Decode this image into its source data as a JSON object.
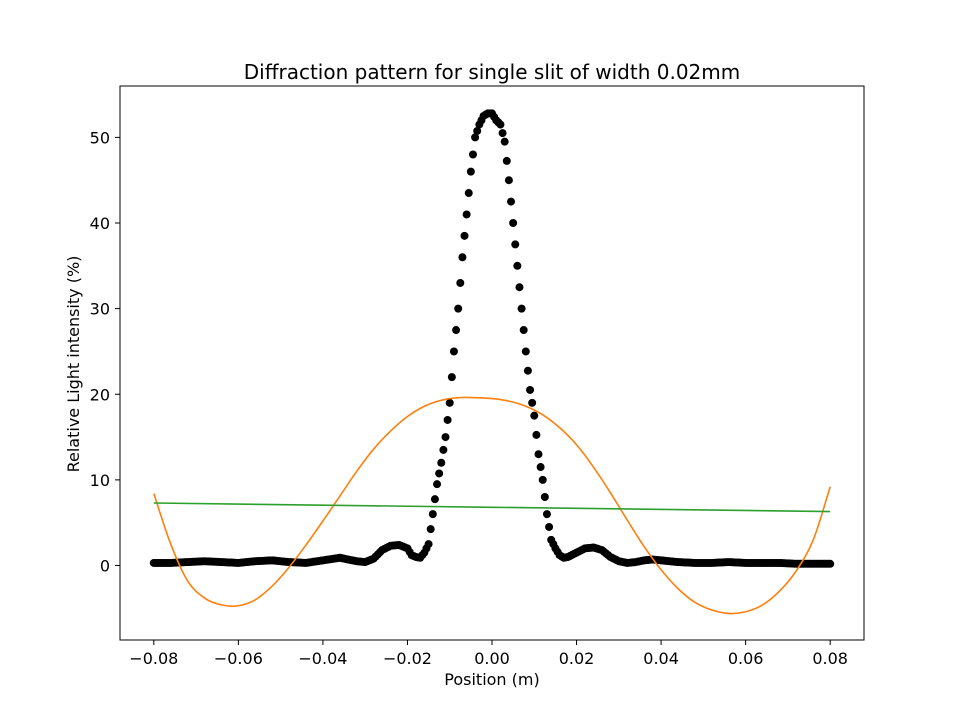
{
  "chart_data": {
    "type": "scatter",
    "title": "Diffraction pattern for single slit of width 0.02mm",
    "xlabel": "Position (m)",
    "ylabel": "Relative Light intensity (%)",
    "xlim": [
      -0.088,
      0.088
    ],
    "ylim": [
      -8.7,
      56
    ],
    "xticks": [
      -0.08,
      -0.06,
      -0.04,
      -0.02,
      0.0,
      0.02,
      0.04,
      0.06,
      0.08
    ],
    "xtick_labels": [
      "−0.08",
      "−0.06",
      "−0.04",
      "−0.02",
      "0.00",
      "0.02",
      "0.04",
      "0.06",
      "0.08"
    ],
    "yticks": [
      0,
      10,
      20,
      30,
      40,
      50
    ],
    "ytick_labels": [
      "0",
      "10",
      "20",
      "30",
      "40",
      "50"
    ],
    "grid": false,
    "legend": false,
    "series": [
      {
        "kind": "scatter",
        "color": "#000000",
        "x": [
          -0.08,
          -0.076,
          -0.072,
          -0.068,
          -0.064,
          -0.06,
          -0.056,
          -0.052,
          -0.048,
          -0.044,
          -0.04,
          -0.036,
          -0.032,
          -0.03,
          -0.028,
          -0.026,
          -0.024,
          -0.022,
          -0.02,
          -0.019,
          -0.018,
          -0.017,
          -0.016,
          -0.015,
          -0.014,
          -0.013,
          -0.012,
          -0.011,
          -0.01,
          -0.009,
          -0.008,
          -0.007,
          -0.006,
          -0.005,
          -0.004,
          -0.003,
          -0.002,
          -0.001,
          0.0,
          0.001,
          0.002,
          0.003,
          0.004,
          0.005,
          0.006,
          0.007,
          0.008,
          0.009,
          0.01,
          0.011,
          0.012,
          0.013,
          0.014,
          0.015,
          0.016,
          0.017,
          0.018,
          0.02,
          0.022,
          0.024,
          0.026,
          0.028,
          0.03,
          0.032,
          0.034,
          0.036,
          0.038,
          0.04,
          0.044,
          0.048,
          0.052,
          0.056,
          0.06,
          0.064,
          0.068,
          0.072,
          0.076,
          0.08
        ],
        "y": [
          0.3,
          0.3,
          0.4,
          0.5,
          0.4,
          0.3,
          0.5,
          0.6,
          0.4,
          0.3,
          0.6,
          0.9,
          0.5,
          0.4,
          0.8,
          1.8,
          2.3,
          2.4,
          2.0,
          1.2,
          1.0,
          0.9,
          1.5,
          2.5,
          6.0,
          9.5,
          12.0,
          15.0,
          19.0,
          25.0,
          30.0,
          36.0,
          41.0,
          46.0,
          50.0,
          51.5,
          52.5,
          52.8,
          52.8,
          52.0,
          51.5,
          49.5,
          45.0,
          40.0,
          35.0,
          30.0,
          25.0,
          20.5,
          17.5,
          13.0,
          10.0,
          6.0,
          3.0,
          2.0,
          1.2,
          0.9,
          1.0,
          1.5,
          2.0,
          2.1,
          1.8,
          1.0,
          0.5,
          0.3,
          0.4,
          0.6,
          0.7,
          0.6,
          0.4,
          0.3,
          0.3,
          0.4,
          0.3,
          0.3,
          0.3,
          0.2,
          0.2,
          0.2
        ]
      },
      {
        "kind": "line",
        "color": "#ff7f0e",
        "x": [
          -0.08,
          -0.076,
          -0.072,
          -0.068,
          -0.064,
          -0.06,
          -0.056,
          -0.052,
          -0.048,
          -0.044,
          -0.04,
          -0.036,
          -0.032,
          -0.028,
          -0.024,
          -0.02,
          -0.016,
          -0.012,
          -0.008,
          -0.004,
          0.0,
          0.004,
          0.008,
          0.012,
          0.016,
          0.02,
          0.024,
          0.028,
          0.032,
          0.036,
          0.04,
          0.044,
          0.048,
          0.052,
          0.056,
          0.06,
          0.064,
          0.068,
          0.072,
          0.076,
          0.08
        ],
        "y": [
          8.4,
          2.5,
          -1.8,
          -3.8,
          -4.6,
          -4.7,
          -4.0,
          -2.4,
          -0.2,
          2.4,
          5.2,
          8.1,
          11.0,
          13.6,
          15.7,
          17.4,
          18.6,
          19.3,
          19.6,
          19.6,
          19.5,
          19.2,
          18.6,
          17.6,
          16.1,
          14.1,
          11.5,
          8.5,
          5.3,
          2.2,
          -0.5,
          -2.7,
          -4.3,
          -5.2,
          -5.6,
          -5.4,
          -4.6,
          -3.0,
          -0.6,
          3.0,
          9.2
        ]
      },
      {
        "kind": "line",
        "color": "#2ca02c",
        "x": [
          -0.08,
          0.08
        ],
        "y": [
          7.3,
          6.3
        ]
      }
    ]
  }
}
